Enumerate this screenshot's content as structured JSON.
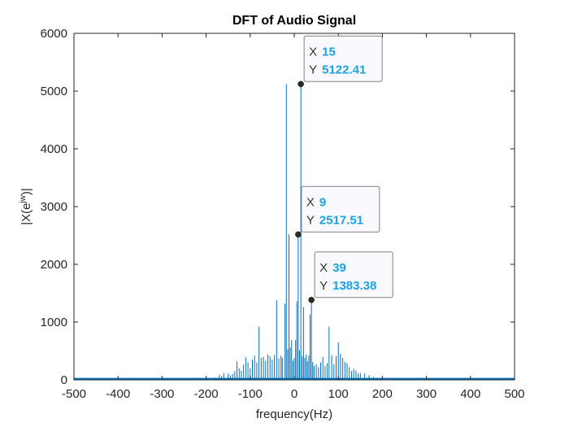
{
  "chart_data": {
    "type": "line",
    "title": "DFT of Audio Signal",
    "xlabel": "frequency(Hz)",
    "ylabel_base": "|X(e",
    "ylabel_sup": "jw",
    "ylabel_tail": ")|",
    "xlim": [
      -500,
      500
    ],
    "ylim": [
      0,
      6000
    ],
    "xticks": [
      -500,
      -400,
      -300,
      -200,
      -100,
      0,
      100,
      200,
      300,
      400,
      500
    ],
    "yticks": [
      0,
      1000,
      2000,
      3000,
      4000,
      5000,
      6000
    ],
    "xtick_labels": [
      "-500",
      "-400",
      "-300",
      "-200",
      "-100",
      "0",
      "100",
      "200",
      "300",
      "400",
      "500"
    ],
    "ytick_labels": [
      "0",
      "1000",
      "2000",
      "3000",
      "4000",
      "5000",
      "6000"
    ],
    "grid": false,
    "series": [
      {
        "color": "#0072BD",
        "x": [
          -180,
          -170,
          -165,
          -160,
          -150,
          -145,
          -140,
          -135,
          -130,
          -125,
          -120,
          -115,
          -110,
          -105,
          -100,
          -95,
          -90,
          -85,
          -80,
          -75,
          -70,
          -65,
          -60,
          -55,
          -50,
          -45,
          -40,
          -35,
          -30,
          -27,
          -21,
          -18,
          -15,
          -12,
          -9,
          -6,
          -3,
          0,
          3,
          6,
          9,
          12,
          15,
          18,
          21,
          24,
          27,
          30,
          33,
          36,
          39,
          42,
          45,
          50,
          55,
          60,
          65,
          70,
          75,
          79,
          85,
          90,
          95,
          100,
          105,
          110,
          115,
          120,
          125,
          130,
          135,
          140,
          145,
          150,
          160,
          170,
          180
        ],
        "y": [
          40,
          90,
          60,
          120,
          110,
          80,
          100,
          150,
          320,
          200,
          160,
          260,
          390,
          300,
          200,
          350,
          420,
          300,
          920,
          380,
          400,
          330,
          440,
          410,
          350,
          430,
          1380,
          370,
          420,
          380,
          1320,
          5122.41,
          530,
          2517.51,
          560,
          690,
          330,
          380,
          690,
          1360,
          2517.51,
          510,
          5122.41,
          410,
          1260,
          380,
          440,
          320,
          420,
          1130,
          1383.38,
          310,
          240,
          270,
          220,
          300,
          400,
          240,
          290,
          920,
          430,
          270,
          410,
          650,
          450,
          380,
          310,
          290,
          220,
          150,
          190,
          160,
          110,
          120,
          110,
          80,
          50
        ],
        "noise_floor": 20
      }
    ],
    "datatips": [
      {
        "x_key": "X",
        "x_value": "15",
        "y_key": "Y",
        "y_value": "5122.41",
        "x": 15,
        "y": 5122.41
      },
      {
        "x_key": "X",
        "x_value": "9",
        "y_key": "Y",
        "y_value": "2517.51",
        "x": 9,
        "y": 2517.51
      },
      {
        "x_key": "X",
        "x_value": "39",
        "y_key": "Y",
        "y_value": "1383.38",
        "x": 39,
        "y": 1383.38
      }
    ]
  }
}
